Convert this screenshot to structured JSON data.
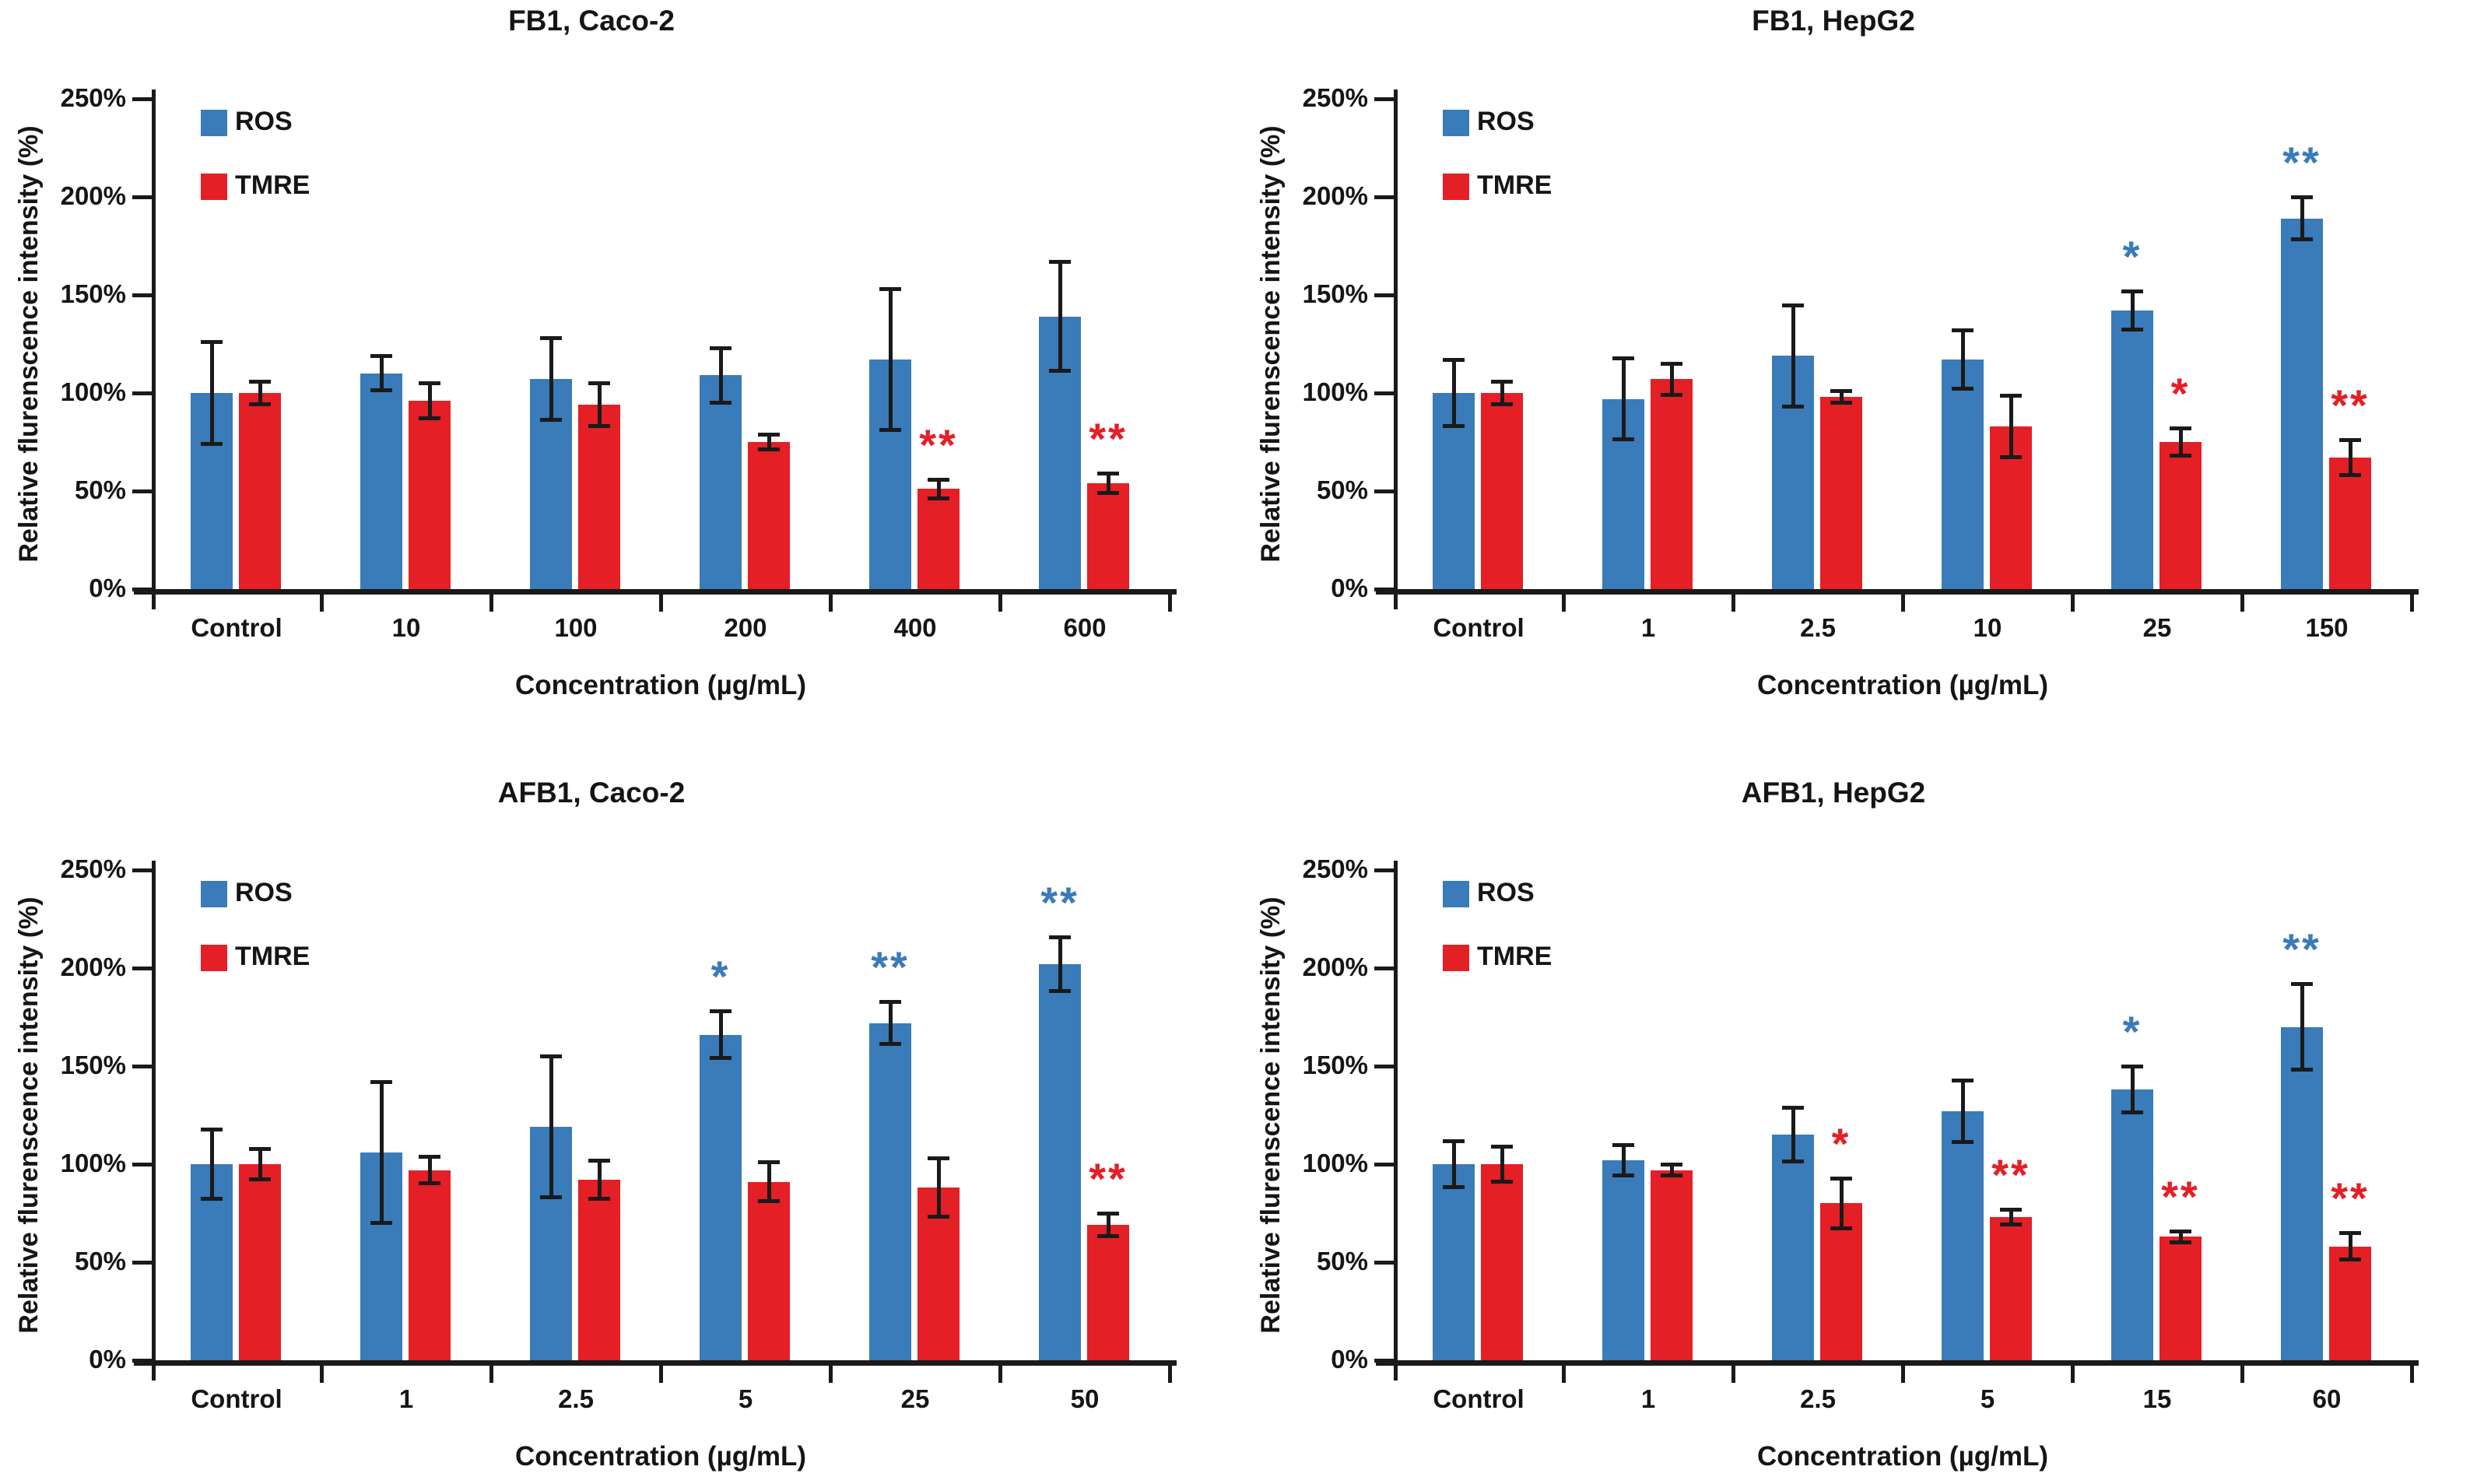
{
  "figure": {
    "background": "#ffffff",
    "axis_color": "#1a1a1a",
    "ylabel": "Relative flurenscence intensity (%)",
    "xlabel": "Concentration (µg/mL)",
    "ytick_labels": [
      "0%",
      "50%",
      "100%",
      "150%",
      "200%",
      "250%"
    ],
    "legend": [
      {
        "label": "ROS",
        "color": "#3A7BB9"
      },
      {
        "label": "TMRE",
        "color": "#E41F26"
      }
    ]
  },
  "chart_data": [
    {
      "type": "bar",
      "title": "FB1, Caco-2",
      "xlabel": "Concentration (µg/mL)",
      "ylabel": "Relative flurenscence intensity (%)",
      "ylim": [
        0,
        250
      ],
      "yticks": [
        0,
        50,
        100,
        150,
        200,
        250
      ],
      "grid": false,
      "legend_position": "upper-left-inside",
      "categories": [
        "Control",
        "10",
        "100",
        "200",
        "400",
        "600"
      ],
      "series": [
        {
          "name": "ROS",
          "color": "#3A7BB9",
          "values": [
            100,
            110,
            107,
            109,
            117,
            139
          ],
          "errors": [
            26,
            9,
            21,
            14,
            36,
            28
          ],
          "significance": [
            "",
            "",
            "",
            "",
            "",
            ""
          ]
        },
        {
          "name": "TMRE",
          "color": "#E41F26",
          "values": [
            100,
            96,
            94,
            75,
            51,
            54
          ],
          "errors": [
            6,
            9,
            11,
            4,
            5,
            5
          ],
          "significance": [
            "",
            "",
            "",
            "",
            "**",
            "**"
          ]
        }
      ]
    },
    {
      "type": "bar",
      "title": "FB1, HepG2",
      "xlabel": "Concentration (µg/mL)",
      "ylabel": "Relative flurenscence intensity (%)",
      "ylim": [
        0,
        250
      ],
      "yticks": [
        0,
        50,
        100,
        150,
        200,
        250
      ],
      "grid": false,
      "legend_position": "upper-left-inside",
      "categories": [
        "Control",
        "1",
        "2.5",
        "10",
        "25",
        "150"
      ],
      "series": [
        {
          "name": "ROS",
          "color": "#3A7BB9",
          "values": [
            100,
            97,
            119,
            117,
            142,
            189
          ],
          "errors": [
            17,
            21,
            26,
            15,
            10,
            11
          ],
          "significance": [
            "",
            "",
            "",
            "",
            "*",
            "**"
          ]
        },
        {
          "name": "TMRE",
          "color": "#E41F26",
          "values": [
            100,
            107,
            98,
            83,
            75,
            67
          ],
          "errors": [
            6,
            8,
            3,
            16,
            7,
            9
          ],
          "significance": [
            "",
            "",
            "",
            "",
            "*",
            "**"
          ]
        }
      ]
    },
    {
      "type": "bar",
      "title": "AFB1, Caco-2",
      "xlabel": "Concentration (µg/mL)",
      "ylabel": "Relative flurenscence intensity (%)",
      "ylim": [
        0,
        250
      ],
      "yticks": [
        0,
        50,
        100,
        150,
        200,
        250
      ],
      "grid": false,
      "legend_position": "upper-left-inside",
      "categories": [
        "Control",
        "1",
        "2.5",
        "5",
        "25",
        "50"
      ],
      "series": [
        {
          "name": "ROS",
          "color": "#3A7BB9",
          "values": [
            100,
            106,
            119,
            166,
            172,
            202
          ],
          "errors": [
            18,
            36,
            36,
            12,
            11,
            14
          ],
          "significance": [
            "",
            "",
            "",
            "*",
            "**",
            "**"
          ]
        },
        {
          "name": "TMRE",
          "color": "#E41F26",
          "values": [
            100,
            97,
            92,
            91,
            88,
            69
          ],
          "errors": [
            8,
            7,
            10,
            10,
            15,
            6
          ],
          "significance": [
            "",
            "",
            "",
            "",
            "",
            "**"
          ]
        }
      ]
    },
    {
      "type": "bar",
      "title": "AFB1, HepG2",
      "xlabel": "Concentration (µg/mL)",
      "ylabel": "Relative flurenscence intensity (%)",
      "ylim": [
        0,
        250
      ],
      "yticks": [
        0,
        50,
        100,
        150,
        200,
        250
      ],
      "grid": false,
      "legend_position": "upper-left-inside",
      "categories": [
        "Control",
        "1",
        "2.5",
        "5",
        "15",
        "60"
      ],
      "series": [
        {
          "name": "ROS",
          "color": "#3A7BB9",
          "values": [
            100,
            102,
            115,
            127,
            138,
            170
          ],
          "errors": [
            12,
            8,
            14,
            16,
            12,
            22
          ],
          "significance": [
            "",
            "",
            "",
            "",
            "*",
            "**"
          ]
        },
        {
          "name": "TMRE",
          "color": "#E41F26",
          "values": [
            100,
            97,
            80,
            73,
            63,
            58
          ],
          "errors": [
            9,
            3,
            13,
            4,
            3,
            7
          ],
          "significance": [
            "",
            "",
            "*",
            "**",
            "**",
            "**"
          ]
        }
      ]
    }
  ]
}
